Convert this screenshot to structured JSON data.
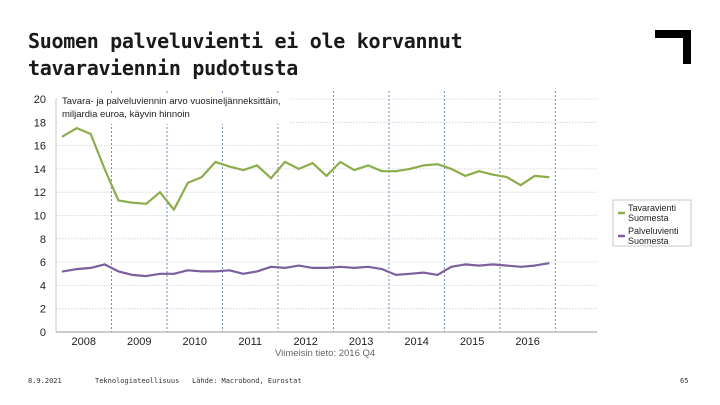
{
  "slide": {
    "title": "Suomen palveluvienti ei ole korvannut tavaraviennin pudotusta",
    "footer_date": "8.9.2021",
    "footer_org": "Teknologiateollisuus",
    "footer_source": "Lähde: Macrobond, Eurostat",
    "page_number": "65"
  },
  "colors": {
    "series_goods": "#8cad4b",
    "series_services": "#7c5f9e",
    "brand": "#000000"
  },
  "chart_data": {
    "type": "line",
    "note_line1": "Tavara- ja palveluviennin arvo vuosineljänneksittäin,",
    "note_line2": "miljardia euroa, käyvin hinnoin",
    "updated_label": "Viimeisin tieto: 2016 Q4",
    "y_ticks": [
      "0",
      "2",
      "4",
      "6",
      "8",
      "10",
      "12",
      "14",
      "16",
      "18",
      "20"
    ],
    "ylim": [
      0,
      20
    ],
    "x_labels": [
      "2008",
      "2009",
      "2010",
      "2011",
      "2012",
      "2013",
      "2014",
      "2015",
      "2016"
    ],
    "x_range": [
      2007.5,
      2017.25
    ],
    "year_separators": [
      2008.5,
      2009.5,
      2010.5,
      2011.5,
      2012.5,
      2013.5,
      2014.5,
      2015.5,
      2016.5
    ],
    "x": [
      2007.625,
      2007.875,
      2008.125,
      2008.375,
      2008.625,
      2008.875,
      2009.125,
      2009.375,
      2009.625,
      2009.875,
      2010.125,
      2010.375,
      2010.625,
      2010.875,
      2011.125,
      2011.375,
      2011.625,
      2011.875,
      2012.125,
      2012.375,
      2012.625,
      2012.875,
      2013.125,
      2013.375,
      2013.625,
      2013.875,
      2014.125,
      2014.375,
      2014.625,
      2014.875,
      2015.125,
      2015.375,
      2015.625,
      2015.875,
      2016.125,
      2016.375
    ],
    "series": [
      {
        "name": "Tavaravienti Suomesta",
        "legend_line1": "Tavaravienti",
        "legend_line2": "Suomesta",
        "values": [
          16.8,
          17.5,
          17.0,
          14.0,
          11.3,
          11.1,
          11.0,
          12.0,
          10.5,
          12.8,
          13.3,
          14.6,
          14.2,
          13.9,
          14.3,
          13.2,
          14.6,
          14.0,
          14.5,
          13.4,
          14.6,
          13.9,
          14.3,
          13.8,
          13.8,
          14.0,
          14.3,
          14.4,
          14.0,
          13.4,
          13.8,
          13.5,
          13.3,
          12.6,
          13.4,
          13.3
        ]
      },
      {
        "name": "Palveluvienti Suomesta",
        "legend_line1": "Palveluvienti",
        "legend_line2": "Suomesta",
        "values": [
          5.2,
          5.4,
          5.5,
          5.8,
          5.2,
          4.9,
          4.8,
          5.0,
          5.0,
          5.3,
          5.2,
          5.2,
          5.3,
          5.0,
          5.2,
          5.6,
          5.5,
          5.7,
          5.5,
          5.5,
          5.6,
          5.5,
          5.6,
          5.4,
          4.9,
          5.0,
          5.1,
          4.9,
          5.6,
          5.8,
          5.7,
          5.8,
          5.7,
          5.6,
          5.7,
          5.9
        ]
      }
    ]
  }
}
